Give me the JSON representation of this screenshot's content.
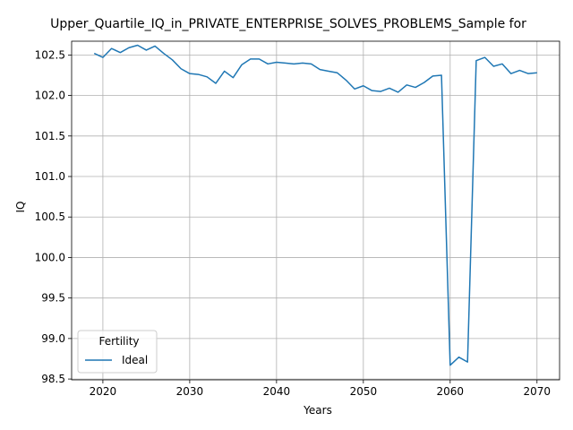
{
  "chart_data": {
    "type": "line",
    "title": "Upper_Quartile_IQ_in_PRIVATE_ENTERPRISE_SOLVES_PROBLEMS_Sample for",
    "xlabel": "Years",
    "ylabel": "IQ",
    "xlim": [
      2016.4,
      2072.6
    ],
    "ylim": [
      98.49,
      102.67
    ],
    "xticks": [
      2020,
      2030,
      2040,
      2050,
      2060,
      2070
    ],
    "yticks": [
      98.5,
      99.0,
      99.5,
      100.0,
      100.5,
      101.0,
      101.5,
      102.0,
      102.5
    ],
    "ytick_labels": [
      "98.5",
      "99.0",
      "99.5",
      "100.0",
      "100.5",
      "101.0",
      "101.5",
      "102.0",
      "102.5"
    ],
    "grid": true,
    "legend": {
      "title": "Fertility",
      "placement": "lower left"
    },
    "series": [
      {
        "name": "Ideal",
        "color": "#1f77b4",
        "x": [
          2019,
          2020,
          2021,
          2022,
          2023,
          2024,
          2025,
          2026,
          2027,
          2028,
          2029,
          2030,
          2031,
          2032,
          2033,
          2034,
          2035,
          2036,
          2037,
          2038,
          2039,
          2040,
          2041,
          2042,
          2043,
          2044,
          2045,
          2046,
          2047,
          2048,
          2049,
          2050,
          2051,
          2052,
          2053,
          2054,
          2055,
          2056,
          2057,
          2058,
          2059,
          2060,
          2061,
          2062,
          2063,
          2064,
          2065,
          2066,
          2067,
          2068,
          2069,
          2070
        ],
        "y": [
          102.52,
          102.47,
          102.58,
          102.53,
          102.59,
          102.62,
          102.56,
          102.61,
          102.52,
          102.44,
          102.33,
          102.27,
          102.26,
          102.23,
          102.15,
          102.3,
          102.22,
          102.38,
          102.45,
          102.45,
          102.39,
          102.41,
          102.4,
          102.39,
          102.4,
          102.39,
          102.32,
          102.3,
          102.28,
          102.19,
          102.08,
          102.12,
          102.06,
          102.05,
          102.09,
          102.04,
          102.13,
          102.1,
          102.16,
          102.24,
          102.25,
          98.67,
          98.77,
          98.71,
          102.43,
          102.47,
          102.36,
          102.39,
          102.27,
          102.31,
          102.27,
          102.28
        ]
      }
    ]
  }
}
